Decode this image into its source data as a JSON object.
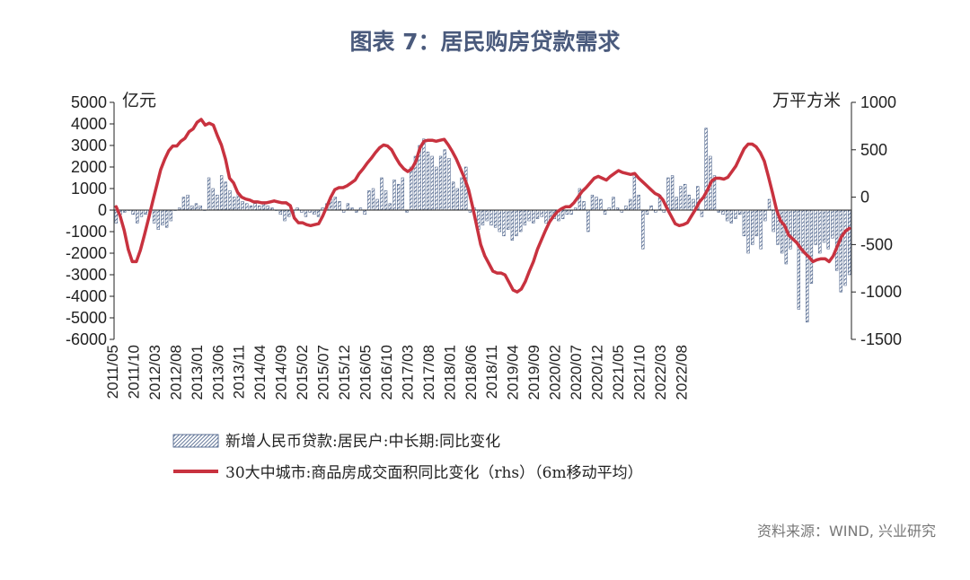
{
  "title": "图表 7：居民购房贷款需求",
  "source": "资料来源：WIND, 兴业研究",
  "colors": {
    "title": "#4a5a7c",
    "bar_fill": "#ffffff",
    "bar_stripe": "#3d5580",
    "bar_stroke": "#3d5580",
    "line": "#c8323f",
    "axis": "#222222",
    "source": "#777777"
  },
  "chart_data": {
    "type": "bar",
    "left_unit": "亿元",
    "right_unit": "万平方米",
    "ylim": [
      -6000,
      5000
    ],
    "y_ticks": [
      5000,
      4000,
      3000,
      2000,
      1000,
      0,
      -1000,
      -2000,
      -3000,
      -4000,
      -5000,
      -6000
    ],
    "y2lim": [
      -1500,
      1000
    ],
    "y2_ticks": [
      1000,
      500,
      0,
      -500,
      -1000,
      -1500
    ],
    "x_labels": [
      "2011/05",
      "2011/10",
      "2012/03",
      "2012/08",
      "2013/01",
      "2013/06",
      "2013/11",
      "2014/04",
      "2014/09",
      "2015/02",
      "2015/07",
      "2015/12",
      "2016/05",
      "2016/10",
      "2017/03",
      "2017/08",
      "2018/01",
      "2018/06",
      "2018/11",
      "2019/04",
      "2019/09",
      "2020/02",
      "2020/07",
      "2020/12",
      "2021/05",
      "2021/10",
      "2022/03",
      "2022/08"
    ],
    "legend": {
      "bar": "新增人民币贷款:居民户:中长期:同比变化",
      "line": "30大中城市:商品房成交面积同比变化（rhs）（6m移动平均）"
    },
    "series": [
      {
        "name": "新增人民币贷款:居民户:中长期:同比变化",
        "kind": "bar",
        "axis": "left",
        "values": [
          -600,
          -200,
          -100,
          0,
          -200,
          -600,
          -300,
          -200,
          -100,
          -600,
          -900,
          -700,
          -800,
          -500,
          0,
          100,
          600,
          700,
          200,
          300,
          200,
          0,
          1500,
          1000,
          700,
          1600,
          1300,
          900,
          600,
          800,
          400,
          300,
          200,
          300,
          200,
          300,
          200,
          100,
          0,
          -200,
          -500,
          -300,
          -200,
          100,
          -100,
          -300,
          -100,
          -200,
          -300,
          100,
          300,
          500,
          600,
          400,
          -100,
          300,
          100,
          -100,
          100,
          -200,
          900,
          1000,
          500,
          1500,
          900,
          300,
          1400,
          1200,
          1500,
          -100,
          2000,
          2500,
          3000,
          3300,
          2700,
          2500,
          2000,
          2500,
          2800,
          2400,
          1300,
          1000,
          1500,
          2000,
          -100,
          100,
          -900,
          -700,
          -500,
          -700,
          -800,
          -1000,
          -1200,
          -900,
          -1400,
          -1200,
          -1000,
          -700,
          -500,
          -600,
          -400,
          -300,
          -600,
          -500,
          -400,
          -500,
          -400,
          -200,
          -200,
          100,
          1000,
          400,
          -1000,
          700,
          600,
          500,
          -200,
          100,
          600,
          100,
          -100,
          200,
          500,
          1700,
          700,
          -1800,
          -200,
          200,
          -100,
          700,
          -100,
          1500,
          1600,
          600,
          1100,
          1200,
          700,
          500,
          1100,
          -300,
          3800,
          2500,
          1600,
          -100,
          -200,
          -500,
          -600,
          -400,
          -200,
          -1200,
          -2000,
          -1600,
          -1200,
          -1800,
          -500,
          500,
          -1000,
          -1600,
          -2000,
          -2500,
          -1800,
          -1300,
          -4600,
          -2000,
          -5200,
          -3400,
          -1600,
          -2000,
          -1500,
          -1800,
          -1300,
          -2800,
          -3800,
          -3500,
          -3000
        ]
      },
      {
        "name": "30大中城市:商品房成交面积同比变化（rhs）（6m移动平均）",
        "kind": "line",
        "axis": "right",
        "values": [
          -100,
          -200,
          -350,
          -550,
          -680,
          -680,
          -560,
          -400,
          -230,
          -50,
          120,
          290,
          400,
          490,
          540,
          540,
          590,
          620,
          690,
          720,
          790,
          820,
          760,
          780,
          760,
          650,
          550,
          400,
          200,
          150,
          50,
          0,
          -20,
          -30,
          -50,
          -50,
          -60,
          -60,
          -50,
          -40,
          -50,
          -60,
          -60,
          -90,
          -220,
          -270,
          -270,
          -290,
          -300,
          -290,
          -280,
          -200,
          -100,
          0,
          80,
          100,
          100,
          120,
          150,
          180,
          250,
          300,
          360,
          410,
          470,
          520,
          550,
          540,
          500,
          420,
          350,
          300,
          270,
          300,
          380,
          520,
          590,
          600,
          600,
          590,
          600,
          610,
          550,
          480,
          400,
          300,
          200,
          80,
          -100,
          -300,
          -500,
          -620,
          -700,
          -780,
          -800,
          -800,
          -820,
          -900,
          -980,
          -1000,
          -970,
          -890,
          -780,
          -680,
          -550,
          -450,
          -350,
          -260,
          -200,
          -150,
          -120,
          -100,
          -100,
          -60,
          0,
          60,
          100,
          150,
          200,
          220,
          200,
          180,
          220,
          250,
          280,
          260,
          250,
          240,
          250,
          200,
          160,
          120,
          80,
          40,
          20,
          -30,
          -120,
          -200,
          -280,
          -300,
          -290,
          -270,
          -200,
          -130,
          -50,
          0,
          80,
          170,
          200,
          200,
          190,
          210,
          270,
          330,
          420,
          510,
          560,
          560,
          530,
          470,
          380,
          220,
          50,
          -130,
          -250,
          -300,
          -400,
          -440,
          -480,
          -540,
          -590,
          -630,
          -680,
          -660,
          -650,
          -650,
          -680,
          -620,
          -520,
          -420,
          -360,
          -330
        ]
      }
    ]
  }
}
